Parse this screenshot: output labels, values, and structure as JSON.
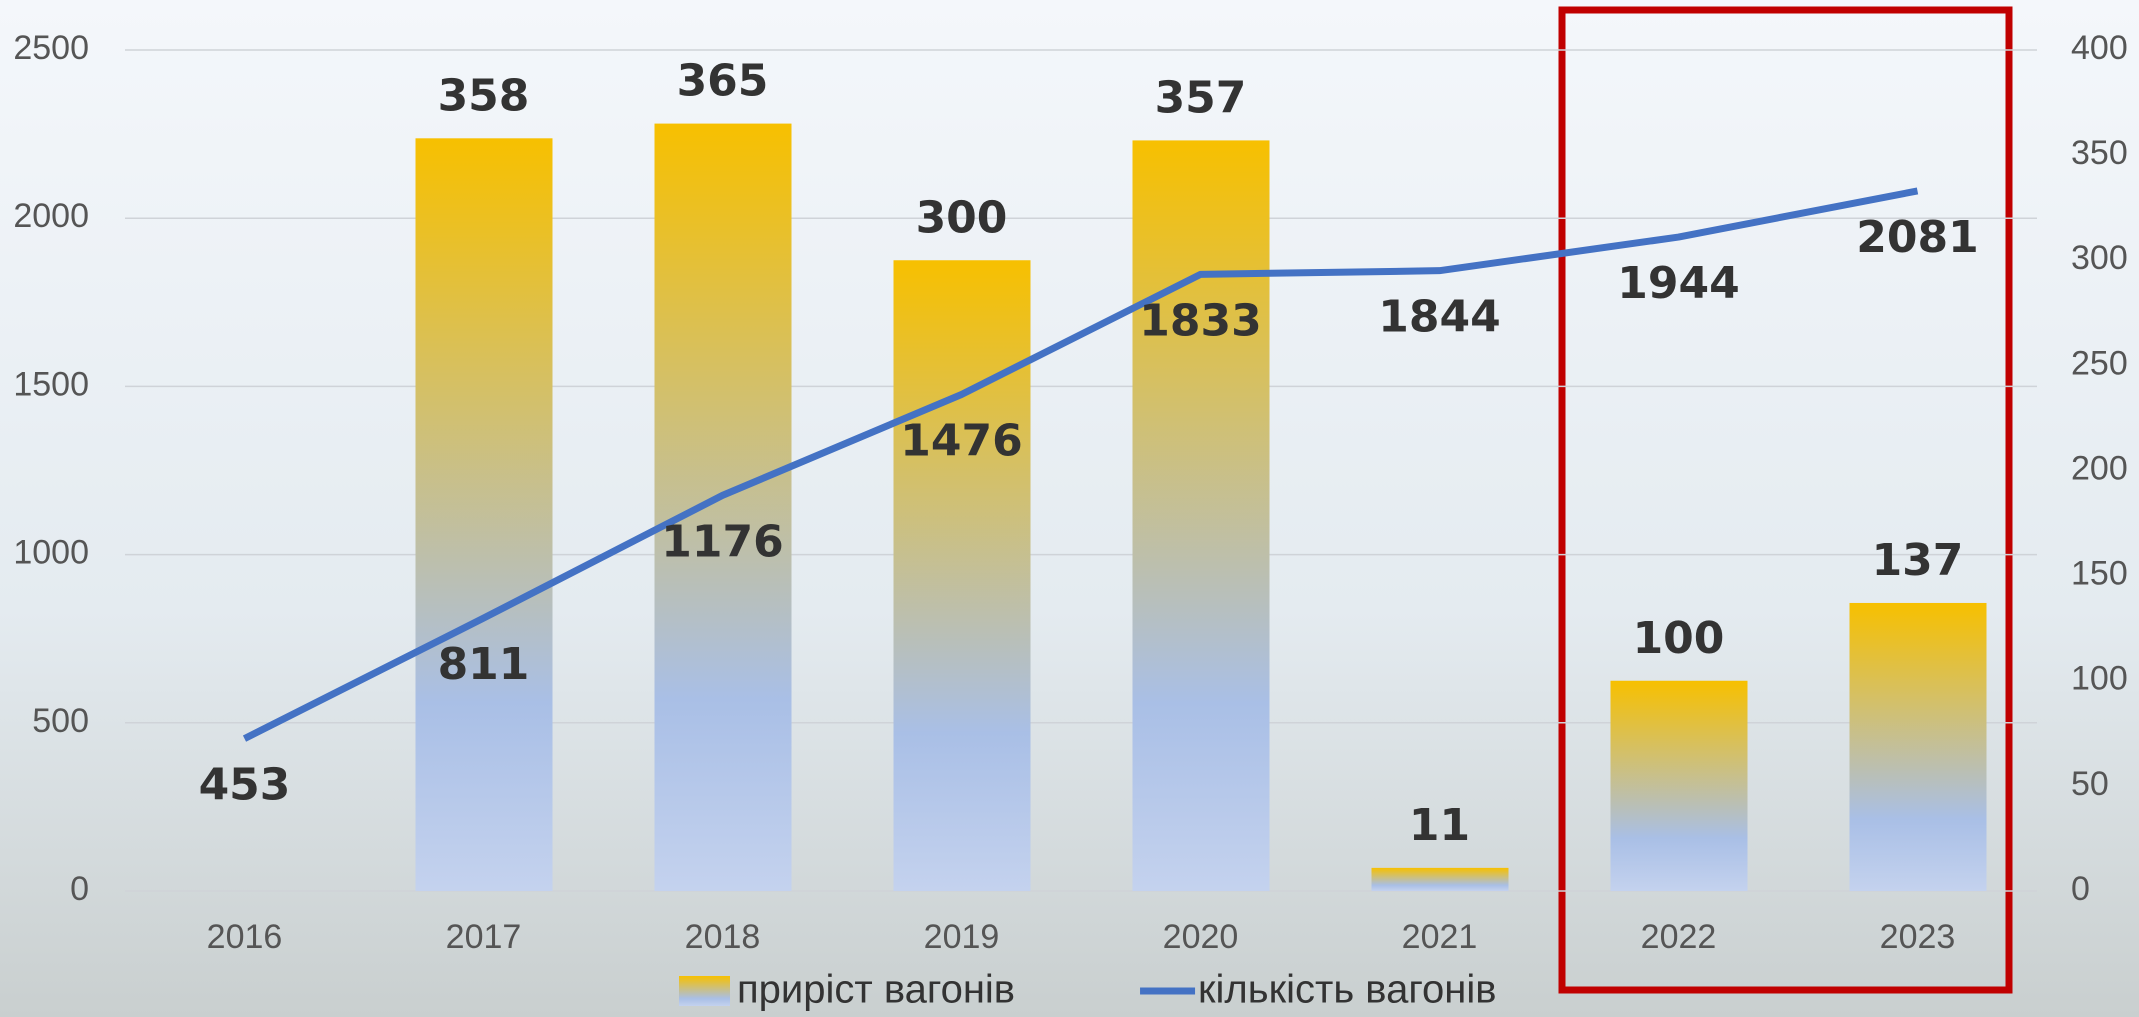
{
  "chart_data": {
    "type": "combo",
    "categories": [
      "2016",
      "2017",
      "2018",
      "2019",
      "2020",
      "2021",
      "2022",
      "2023"
    ],
    "series": [
      {
        "name": "приріст вагонів",
        "type": "bar",
        "axis": "y2",
        "color": "#f7c000",
        "color2": "#a9bfe6",
        "values": [
          null,
          358,
          365,
          300,
          357,
          11,
          100,
          137
        ]
      },
      {
        "name": "кількість вагонів",
        "type": "line",
        "axis": "y",
        "color": "#4472c4",
        "values": [
          453,
          811,
          1176,
          1476,
          1833,
          1844,
          1944,
          2081
        ]
      }
    ],
    "ylim": [
      0,
      2500
    ],
    "yticks": [
      0,
      500,
      1000,
      1500,
      2000,
      2500
    ],
    "y2lim": [
      0,
      400
    ],
    "y2ticks": [
      0,
      50,
      100,
      150,
      200,
      250,
      300,
      350,
      400
    ],
    "grid": true,
    "legend": "bottom"
  }
}
